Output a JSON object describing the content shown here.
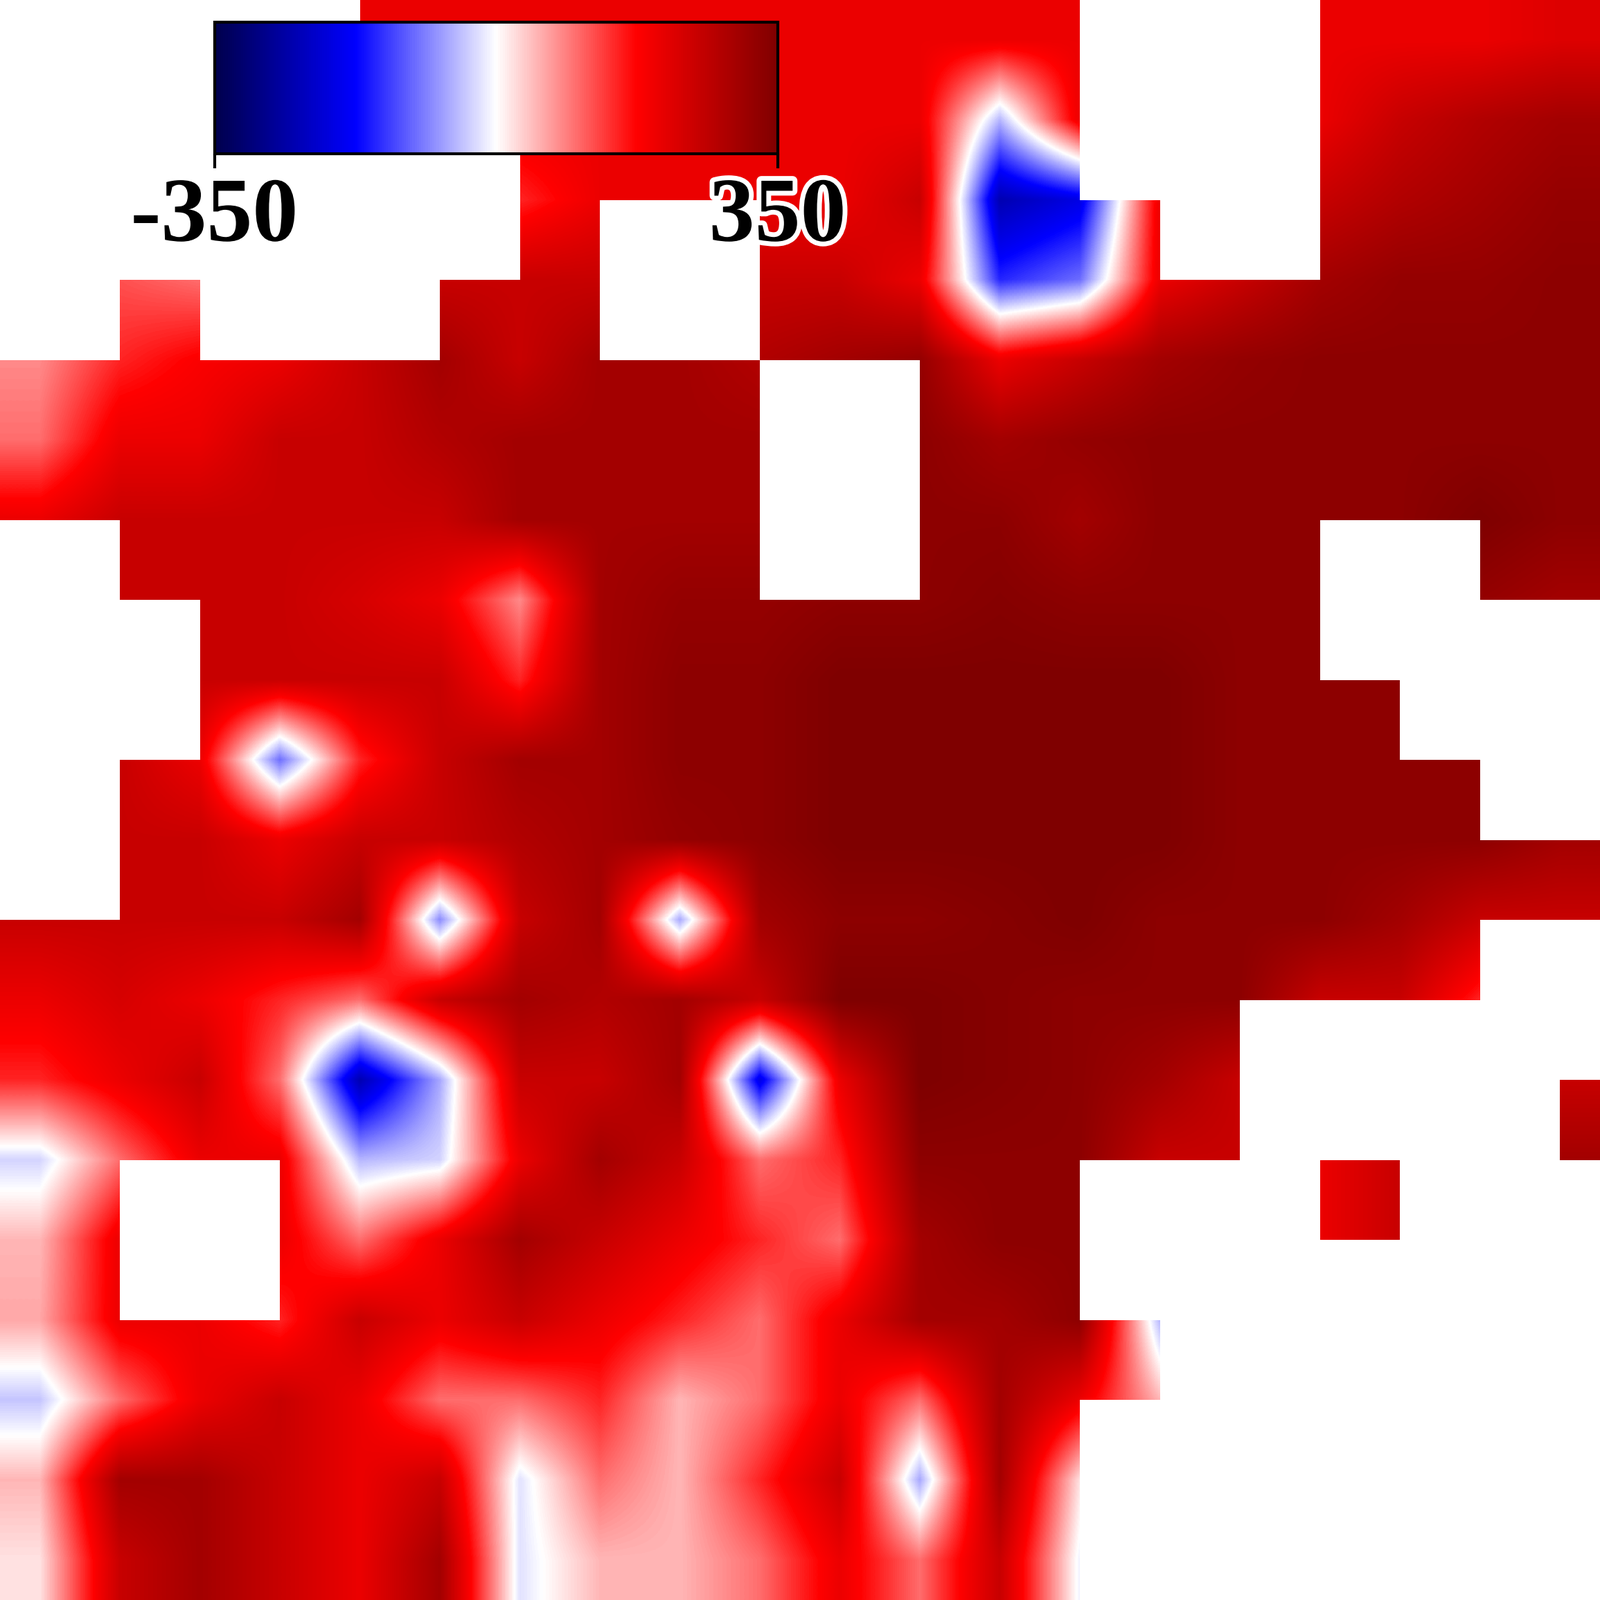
{
  "chart_data": {
    "type": "heatmap",
    "tick_labels": false,
    "cells": [
      [
        null,
        null,
        null,
        null,
        200,
        200,
        200,
        200,
        200,
        200,
        200,
        200,
        200,
        200,
        null,
        null,
        200,
        200,
        200,
        220
      ],
      [
        200,
        200,
        200,
        200,
        200,
        200,
        200,
        200,
        200,
        200,
        200,
        200,
        -50,
        200,
        null,
        null,
        200,
        250,
        280,
        300
      ],
      [
        null,
        null,
        null,
        null,
        null,
        null,
        150,
        200,
        200,
        200,
        200,
        250,
        -250,
        -200,
        200,
        null,
        250,
        280,
        300,
        320
      ],
      [
        null,
        120,
        100,
        null,
        null,
        250,
        250,
        250,
        null,
        250,
        250,
        200,
        -150,
        -100,
        200,
        250,
        300,
        320,
        320,
        330
      ],
      [
        80,
        150,
        180,
        200,
        250,
        300,
        250,
        300,
        300,
        280,
        300,
        320,
        200,
        250,
        300,
        320,
        330,
        330,
        330,
        330
      ],
      [
        100,
        200,
        200,
        250,
        250,
        280,
        300,
        300,
        300,
        300,
        null,
        330,
        300,
        320,
        330,
        330,
        330,
        330,
        330,
        330
      ],
      [
        200,
        250,
        250,
        250,
        250,
        250,
        300,
        300,
        300,
        300,
        null,
        330,
        330,
        300,
        330,
        330,
        330,
        330,
        350,
        330
      ],
      [
        null,
        250,
        250,
        250,
        230,
        200,
        80,
        300,
        320,
        320,
        330,
        330,
        340,
        330,
        330,
        330,
        330,
        null,
        320,
        300
      ],
      [
        250,
        null,
        250,
        250,
        250,
        250,
        150,
        300,
        330,
        330,
        350,
        350,
        350,
        350,
        350,
        330,
        330,
        330,
        null,
        null
      ],
      [
        null,
        250,
        200,
        -100,
        150,
        250,
        300,
        300,
        330,
        330,
        350,
        350,
        350,
        350,
        350,
        330,
        330,
        330,
        330,
        null
      ],
      [
        null,
        250,
        250,
        200,
        250,
        250,
        280,
        300,
        320,
        330,
        350,
        350,
        350,
        350,
        350,
        330,
        330,
        330,
        330,
        300
      ],
      [
        250,
        250,
        250,
        250,
        300,
        -80,
        250,
        300,
        -60,
        300,
        330,
        330,
        340,
        350,
        330,
        330,
        330,
        300,
        250,
        250
      ],
      [
        200,
        230,
        200,
        150,
        100,
        250,
        300,
        280,
        300,
        250,
        350,
        350,
        340,
        330,
        330,
        330,
        250,
        250,
        150,
        null
      ],
      [
        150,
        200,
        250,
        100,
        -250,
        -60,
        250,
        250,
        300,
        -200,
        200,
        350,
        340,
        330,
        300,
        250,
        null,
        null,
        null,
        250
      ],
      [
        -30,
        100,
        200,
        200,
        -50,
        -30,
        200,
        300,
        250,
        100,
        150,
        330,
        330,
        330,
        250,
        250,
        200,
        250,
        250,
        300
      ],
      [
        50,
        200,
        null,
        200,
        100,
        200,
        300,
        250,
        200,
        150,
        100,
        300,
        330,
        330,
        null,
        null,
        200,
        250,
        null,
        null
      ],
      [
        60,
        200,
        200,
        150,
        250,
        200,
        250,
        200,
        150,
        100,
        200,
        300,
        300,
        330,
        -50,
        null,
        null,
        null,
        null,
        null
      ],
      [
        -40,
        100,
        200,
        250,
        200,
        100,
        100,
        150,
        50,
        100,
        200,
        100,
        300,
        200,
        50,
        null,
        null,
        null,
        null,
        null
      ],
      [
        50,
        300,
        300,
        250,
        200,
        250,
        -20,
        100,
        50,
        150,
        250,
        -60,
        300,
        20,
        null,
        null,
        null,
        null,
        null,
        null
      ],
      [
        20,
        250,
        300,
        250,
        200,
        300,
        -20,
        50,
        50,
        100,
        200,
        100,
        250,
        -10,
        null,
        null,
        null,
        null,
        null,
        null
      ]
    ],
    "colorbar": {
      "range": [
        -350,
        350
      ],
      "ticks": [
        -350,
        350
      ]
    }
  }
}
